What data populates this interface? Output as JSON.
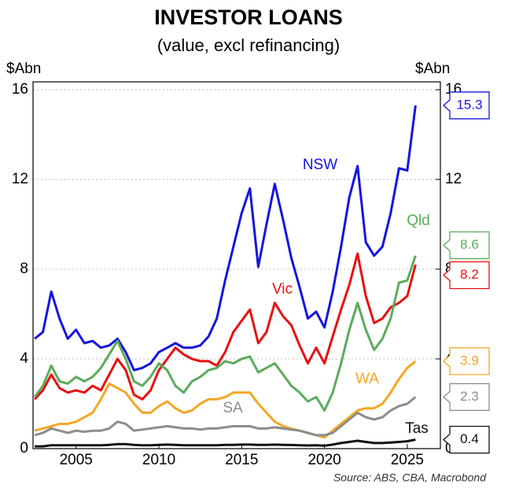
{
  "chart_data": {
    "type": "line",
    "title": "INVESTOR LOANS",
    "subtitle": "(value, excl refinancing)",
    "y_label": "$Abn",
    "y2_label": "$Abn",
    "source": "Source: ABS, CBA, Macrobond",
    "x": [
      2002.5,
      2003,
      2003.5,
      2004,
      2004.5,
      2005,
      2005.5,
      2006,
      2006.5,
      2007,
      2007.5,
      2008,
      2008.5,
      2009,
      2009.5,
      2010,
      2010.5,
      2011,
      2011.5,
      2012,
      2012.5,
      2013,
      2013.5,
      2014,
      2014.5,
      2015,
      2015.5,
      2016,
      2016.5,
      2017,
      2017.5,
      2018,
      2018.5,
      2019,
      2019.5,
      2020,
      2020.5,
      2021,
      2021.5,
      2022,
      2022.5,
      2023,
      2023.5,
      2024,
      2024.5,
      2025,
      2025.5
    ],
    "xlim": [
      2002.4,
      2027
    ],
    "xticks": [
      2005,
      2010,
      2015,
      2020,
      2025
    ],
    "ylim": [
      0,
      16
    ],
    "yticks": [
      0,
      4,
      8,
      12,
      16
    ],
    "y2lim": [
      0,
      16
    ],
    "y2ticks": [
      0,
      4,
      8,
      12,
      16
    ],
    "grid": true,
    "series": [
      {
        "name": "NSW",
        "color": "#1414e0",
        "values": [
          4.9,
          5.2,
          7.0,
          5.8,
          4.9,
          5.3,
          4.7,
          4.8,
          4.5,
          4.6,
          4.9,
          4.3,
          3.5,
          3.6,
          3.8,
          4.3,
          4.5,
          4.7,
          4.5,
          4.5,
          4.6,
          5.0,
          5.8,
          7.5,
          9.0,
          10.5,
          11.6,
          8.1,
          10.0,
          11.8,
          10.2,
          8.5,
          7.2,
          5.8,
          6.1,
          5.4,
          7.0,
          9.0,
          11.2,
          12.6,
          9.2,
          8.6,
          9.0,
          10.5,
          12.5,
          12.4,
          15.3
        ]
      },
      {
        "name": "Vic",
        "color": "#e81010",
        "values": [
          2.2,
          2.6,
          3.3,
          2.7,
          2.5,
          2.6,
          2.5,
          2.8,
          2.6,
          3.3,
          4.0,
          3.5,
          2.4,
          2.2,
          2.6,
          3.5,
          4.0,
          4.5,
          4.2,
          4.0,
          3.9,
          3.9,
          3.7,
          4.3,
          5.2,
          5.7,
          6.2,
          4.7,
          5.2,
          6.5,
          5.9,
          5.5,
          4.6,
          3.8,
          4.5,
          3.8,
          5.0,
          6.2,
          7.3,
          8.7,
          6.8,
          5.6,
          5.8,
          6.3,
          6.5,
          6.8,
          8.2
        ]
      },
      {
        "name": "Qld",
        "color": "#5cab5c",
        "values": [
          2.3,
          2.8,
          3.7,
          3.0,
          2.9,
          3.2,
          3.0,
          3.2,
          3.6,
          4.2,
          4.8,
          4.0,
          3.0,
          2.8,
          3.2,
          3.8,
          3.5,
          2.8,
          2.5,
          3.0,
          3.2,
          3.5,
          3.6,
          3.9,
          3.8,
          4.0,
          4.1,
          3.4,
          3.6,
          3.8,
          3.3,
          2.8,
          2.5,
          2.1,
          2.3,
          1.7,
          2.5,
          3.8,
          5.3,
          6.5,
          5.3,
          4.4,
          4.9,
          5.8,
          7.4,
          7.5,
          8.6
        ]
      },
      {
        "name": "WA",
        "color": "#f5a623",
        "values": [
          0.8,
          0.9,
          1.0,
          1.1,
          1.1,
          1.2,
          1.4,
          1.6,
          2.2,
          2.9,
          2.7,
          2.5,
          2.0,
          1.6,
          1.6,
          1.9,
          2.1,
          1.8,
          1.6,
          1.7,
          2.0,
          2.2,
          2.2,
          2.3,
          2.5,
          2.5,
          2.5,
          2.0,
          1.6,
          1.2,
          1.0,
          0.9,
          0.8,
          0.7,
          0.6,
          0.5,
          0.8,
          1.1,
          1.4,
          1.7,
          1.8,
          1.8,
          2.0,
          2.5,
          3.1,
          3.6,
          3.9
        ]
      },
      {
        "name": "SA",
        "color": "#8c8c8c",
        "values": [
          0.6,
          0.7,
          0.9,
          0.8,
          0.7,
          0.8,
          0.75,
          0.8,
          0.8,
          0.9,
          1.2,
          1.1,
          0.8,
          0.85,
          0.9,
          0.95,
          1.0,
          0.95,
          0.9,
          0.9,
          0.85,
          0.9,
          0.9,
          0.95,
          1.0,
          1.0,
          1.0,
          0.9,
          0.9,
          0.95,
          0.9,
          0.85,
          0.8,
          0.7,
          0.6,
          0.6,
          0.7,
          1.0,
          1.3,
          1.6,
          1.4,
          1.3,
          1.4,
          1.7,
          1.9,
          2.0,
          2.3
        ]
      },
      {
        "name": "Tas",
        "color": "#111111",
        "values": [
          0.1,
          0.1,
          0.15,
          0.15,
          0.15,
          0.15,
          0.15,
          0.15,
          0.15,
          0.17,
          0.2,
          0.2,
          0.17,
          0.15,
          0.15,
          0.17,
          0.18,
          0.17,
          0.15,
          0.15,
          0.15,
          0.15,
          0.15,
          0.17,
          0.17,
          0.18,
          0.18,
          0.17,
          0.17,
          0.18,
          0.17,
          0.16,
          0.15,
          0.14,
          0.15,
          0.13,
          0.18,
          0.25,
          0.3,
          0.35,
          0.3,
          0.25,
          0.25,
          0.27,
          0.3,
          0.33,
          0.4
        ]
      }
    ]
  }
}
